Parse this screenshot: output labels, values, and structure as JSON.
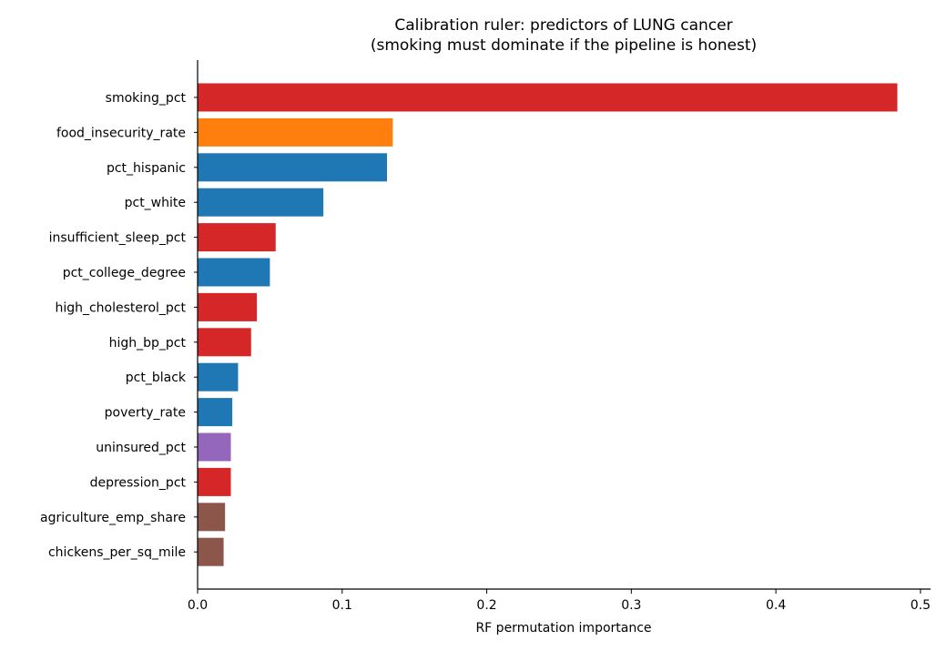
{
  "chart_data": {
    "type": "bar",
    "orientation": "horizontal",
    "title": "Calibration ruler: predictors of LUNG cancer",
    "subtitle": "(smoking must dominate if the pipeline is honest)",
    "xlabel": "RF permutation importance",
    "ylabel": "",
    "xlim": [
      0,
      0.507
    ],
    "xticks": [
      0.0,
      0.1,
      0.2,
      0.3,
      0.4,
      0.5
    ],
    "xtick_labels": [
      "0.0",
      "0.1",
      "0.2",
      "0.3",
      "0.4",
      "0.5"
    ],
    "grid": false,
    "legend": false,
    "categories": [
      "smoking_pct",
      "food_insecurity_rate",
      "pct_hispanic",
      "pct_white",
      "insufficient_sleep_pct",
      "pct_college_degree",
      "high_cholesterol_pct",
      "high_bp_pct",
      "pct_black",
      "poverty_rate",
      "uninsured_pct",
      "depression_pct",
      "agriculture_emp_share",
      "chickens_per_sq_mile"
    ],
    "values": [
      0.484,
      0.135,
      0.131,
      0.087,
      0.054,
      0.05,
      0.041,
      0.037,
      0.028,
      0.024,
      0.023,
      0.023,
      0.019,
      0.018
    ],
    "colors": [
      "#d62728",
      "#ff7f0e",
      "#1f77b4",
      "#1f77b4",
      "#d62728",
      "#1f77b4",
      "#d62728",
      "#d62728",
      "#1f77b4",
      "#1f77b4",
      "#9467bd",
      "#d62728",
      "#8c564b",
      "#8c564b"
    ]
  }
}
